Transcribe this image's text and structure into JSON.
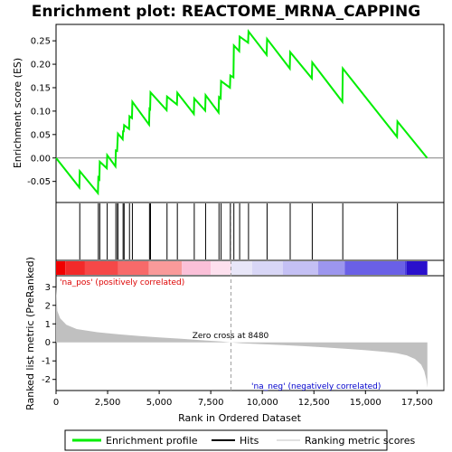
{
  "chart_data": {
    "type": "line",
    "title": "Enrichment plot: REACTOME_MRNA_CAPPING",
    "es_ylabel": "Enrichment score (ES)",
    "metric_ylabel": "Ranked list metric (PreRanked)",
    "xlabel": "Rank in Ordered Dataset",
    "x_ticks": [
      "0",
      "2,500",
      "5,000",
      "7,500",
      "10,000",
      "12,500",
      "15,000",
      "17,500"
    ],
    "x_tick_values": [
      0,
      2500,
      5000,
      7500,
      10000,
      12500,
      15000,
      17500
    ],
    "xlim": [
      0,
      18800
    ],
    "es_ylim": [
      -0.095,
      0.285
    ],
    "es_y_ticks": [
      "-0.05",
      "0.00",
      "0.05",
      "0.10",
      "0.15",
      "0.20",
      "0.25"
    ],
    "es_y_tick_values": [
      -0.05,
      0.0,
      0.05,
      0.1,
      0.15,
      0.2,
      0.25
    ],
    "metric_ylim": [
      -2.6,
      3.6
    ],
    "metric_y_ticks": [
      "-2",
      "-1",
      "0",
      "1",
      "2",
      "3"
    ],
    "metric_y_tick_values": [
      -2,
      -1,
      0,
      1,
      2,
      3
    ],
    "hits": [
      1150,
      2050,
      2120,
      2480,
      2900,
      2980,
      3000,
      3250,
      3300,
      3560,
      3700,
      4530,
      4580,
      5380,
      5880,
      6700,
      7250,
      7900,
      8000,
      8450,
      8620,
      8900,
      9330,
      10230,
      11350,
      12420,
      13900,
      16550
    ],
    "es_path_peaks": [
      [
        0,
        0.0
      ],
      [
        1130,
        -0.063
      ],
      [
        1150,
        -0.028
      ],
      [
        2030,
        -0.075
      ],
      [
        2050,
        -0.042
      ],
      [
        2100,
        -0.045
      ],
      [
        2120,
        -0.008
      ],
      [
        2460,
        -0.022
      ],
      [
        2480,
        0.006
      ],
      [
        2880,
        -0.018
      ],
      [
        2900,
        0.016
      ],
      [
        2960,
        0.015
      ],
      [
        2980,
        0.034
      ],
      [
        3000,
        0.052
      ],
      [
        3230,
        0.04
      ],
      [
        3250,
        0.057
      ],
      [
        3280,
        0.057
      ],
      [
        3300,
        0.07
      ],
      [
        3540,
        0.062
      ],
      [
        3560,
        0.089
      ],
      [
        3680,
        0.085
      ],
      [
        3700,
        0.12
      ],
      [
        4510,
        0.071
      ],
      [
        4530,
        0.105
      ],
      [
        4560,
        0.104
      ],
      [
        4580,
        0.14
      ],
      [
        5360,
        0.102
      ],
      [
        5380,
        0.131
      ],
      [
        5860,
        0.114
      ],
      [
        5880,
        0.139
      ],
      [
        6680,
        0.094
      ],
      [
        6700,
        0.127
      ],
      [
        7230,
        0.101
      ],
      [
        7250,
        0.134
      ],
      [
        7880,
        0.097
      ],
      [
        7900,
        0.13
      ],
      [
        7980,
        0.127
      ],
      [
        8000,
        0.164
      ],
      [
        8430,
        0.15
      ],
      [
        8450,
        0.176
      ],
      [
        8600,
        0.172
      ],
      [
        8620,
        0.24
      ],
      [
        8880,
        0.228
      ],
      [
        8900,
        0.259
      ],
      [
        9310,
        0.246
      ],
      [
        9330,
        0.27
      ],
      [
        10210,
        0.22
      ],
      [
        10230,
        0.254
      ],
      [
        11330,
        0.191
      ],
      [
        11350,
        0.226
      ],
      [
        12400,
        0.17
      ],
      [
        12420,
        0.204
      ],
      [
        13880,
        0.12
      ],
      [
        13900,
        0.191
      ],
      [
        16530,
        0.045
      ],
      [
        16550,
        0.078
      ],
      [
        17990,
        0.0
      ]
    ],
    "metric_samples": [
      [
        0,
        3.0
      ],
      [
        60,
        1.7
      ],
      [
        200,
        1.3
      ],
      [
        500,
        0.95
      ],
      [
        1000,
        0.72
      ],
      [
        2000,
        0.55
      ],
      [
        3000,
        0.44
      ],
      [
        4000,
        0.35
      ],
      [
        5000,
        0.27
      ],
      [
        6000,
        0.2
      ],
      [
        7000,
        0.12
      ],
      [
        8000,
        0.05
      ],
      [
        8480,
        0.0
      ],
      [
        9000,
        -0.05
      ],
      [
        10000,
        -0.1
      ],
      [
        11000,
        -0.15
      ],
      [
        12000,
        -0.2
      ],
      [
        13000,
        -0.27
      ],
      [
        14000,
        -0.34
      ],
      [
        15000,
        -0.42
      ],
      [
        16000,
        -0.52
      ],
      [
        16500,
        -0.58
      ],
      [
        17000,
        -0.7
      ],
      [
        17400,
        -0.9
      ],
      [
        17700,
        -1.2
      ],
      [
        17850,
        -1.55
      ],
      [
        17950,
        -2.0
      ],
      [
        18000,
        -2.45
      ]
    ],
    "zero_cross_label": "Zero cross at 8480",
    "zero_cross": 8480,
    "pos_label": "'na_pos' (positively correlated)",
    "neg_label": "'na_neg' (negatively correlated)",
    "legend": [
      "Enrichment profile",
      "Hits",
      "Ranking metric scores"
    ],
    "colors": {
      "es_line": "#00ee00",
      "hit": "#000000",
      "metric_fill": "#c0c0c0",
      "pos_text": "#dd0000",
      "neg_text": "#0000cc",
      "zero_line": "#a0a0a0"
    },
    "heat_bar": [
      {
        "from": 0,
        "to": 450,
        "color": "#f00000"
      },
      {
        "from": 450,
        "to": 1400,
        "color": "#f22a2a"
      },
      {
        "from": 1400,
        "to": 3000,
        "color": "#f54848"
      },
      {
        "from": 3000,
        "to": 4500,
        "color": "#f76a6a"
      },
      {
        "from": 4500,
        "to": 6100,
        "color": "#f99a9a"
      },
      {
        "from": 6100,
        "to": 7500,
        "color": "#fbc0d8"
      },
      {
        "from": 7500,
        "to": 8480,
        "color": "#fde0ee"
      },
      {
        "from": 8480,
        "to": 9500,
        "color": "#e8e6f8"
      },
      {
        "from": 9500,
        "to": 11000,
        "color": "#d8d6f6"
      },
      {
        "from": 11000,
        "to": 12700,
        "color": "#c4c0f4"
      },
      {
        "from": 12700,
        "to": 14000,
        "color": "#9c96ee"
      },
      {
        "from": 14000,
        "to": 16900,
        "color": "#6a60e6"
      },
      {
        "from": 16900,
        "to": 17000,
        "color": "#4a3edc"
      },
      {
        "from": 17000,
        "to": 18000,
        "color": "#2a10cc"
      }
    ]
  }
}
